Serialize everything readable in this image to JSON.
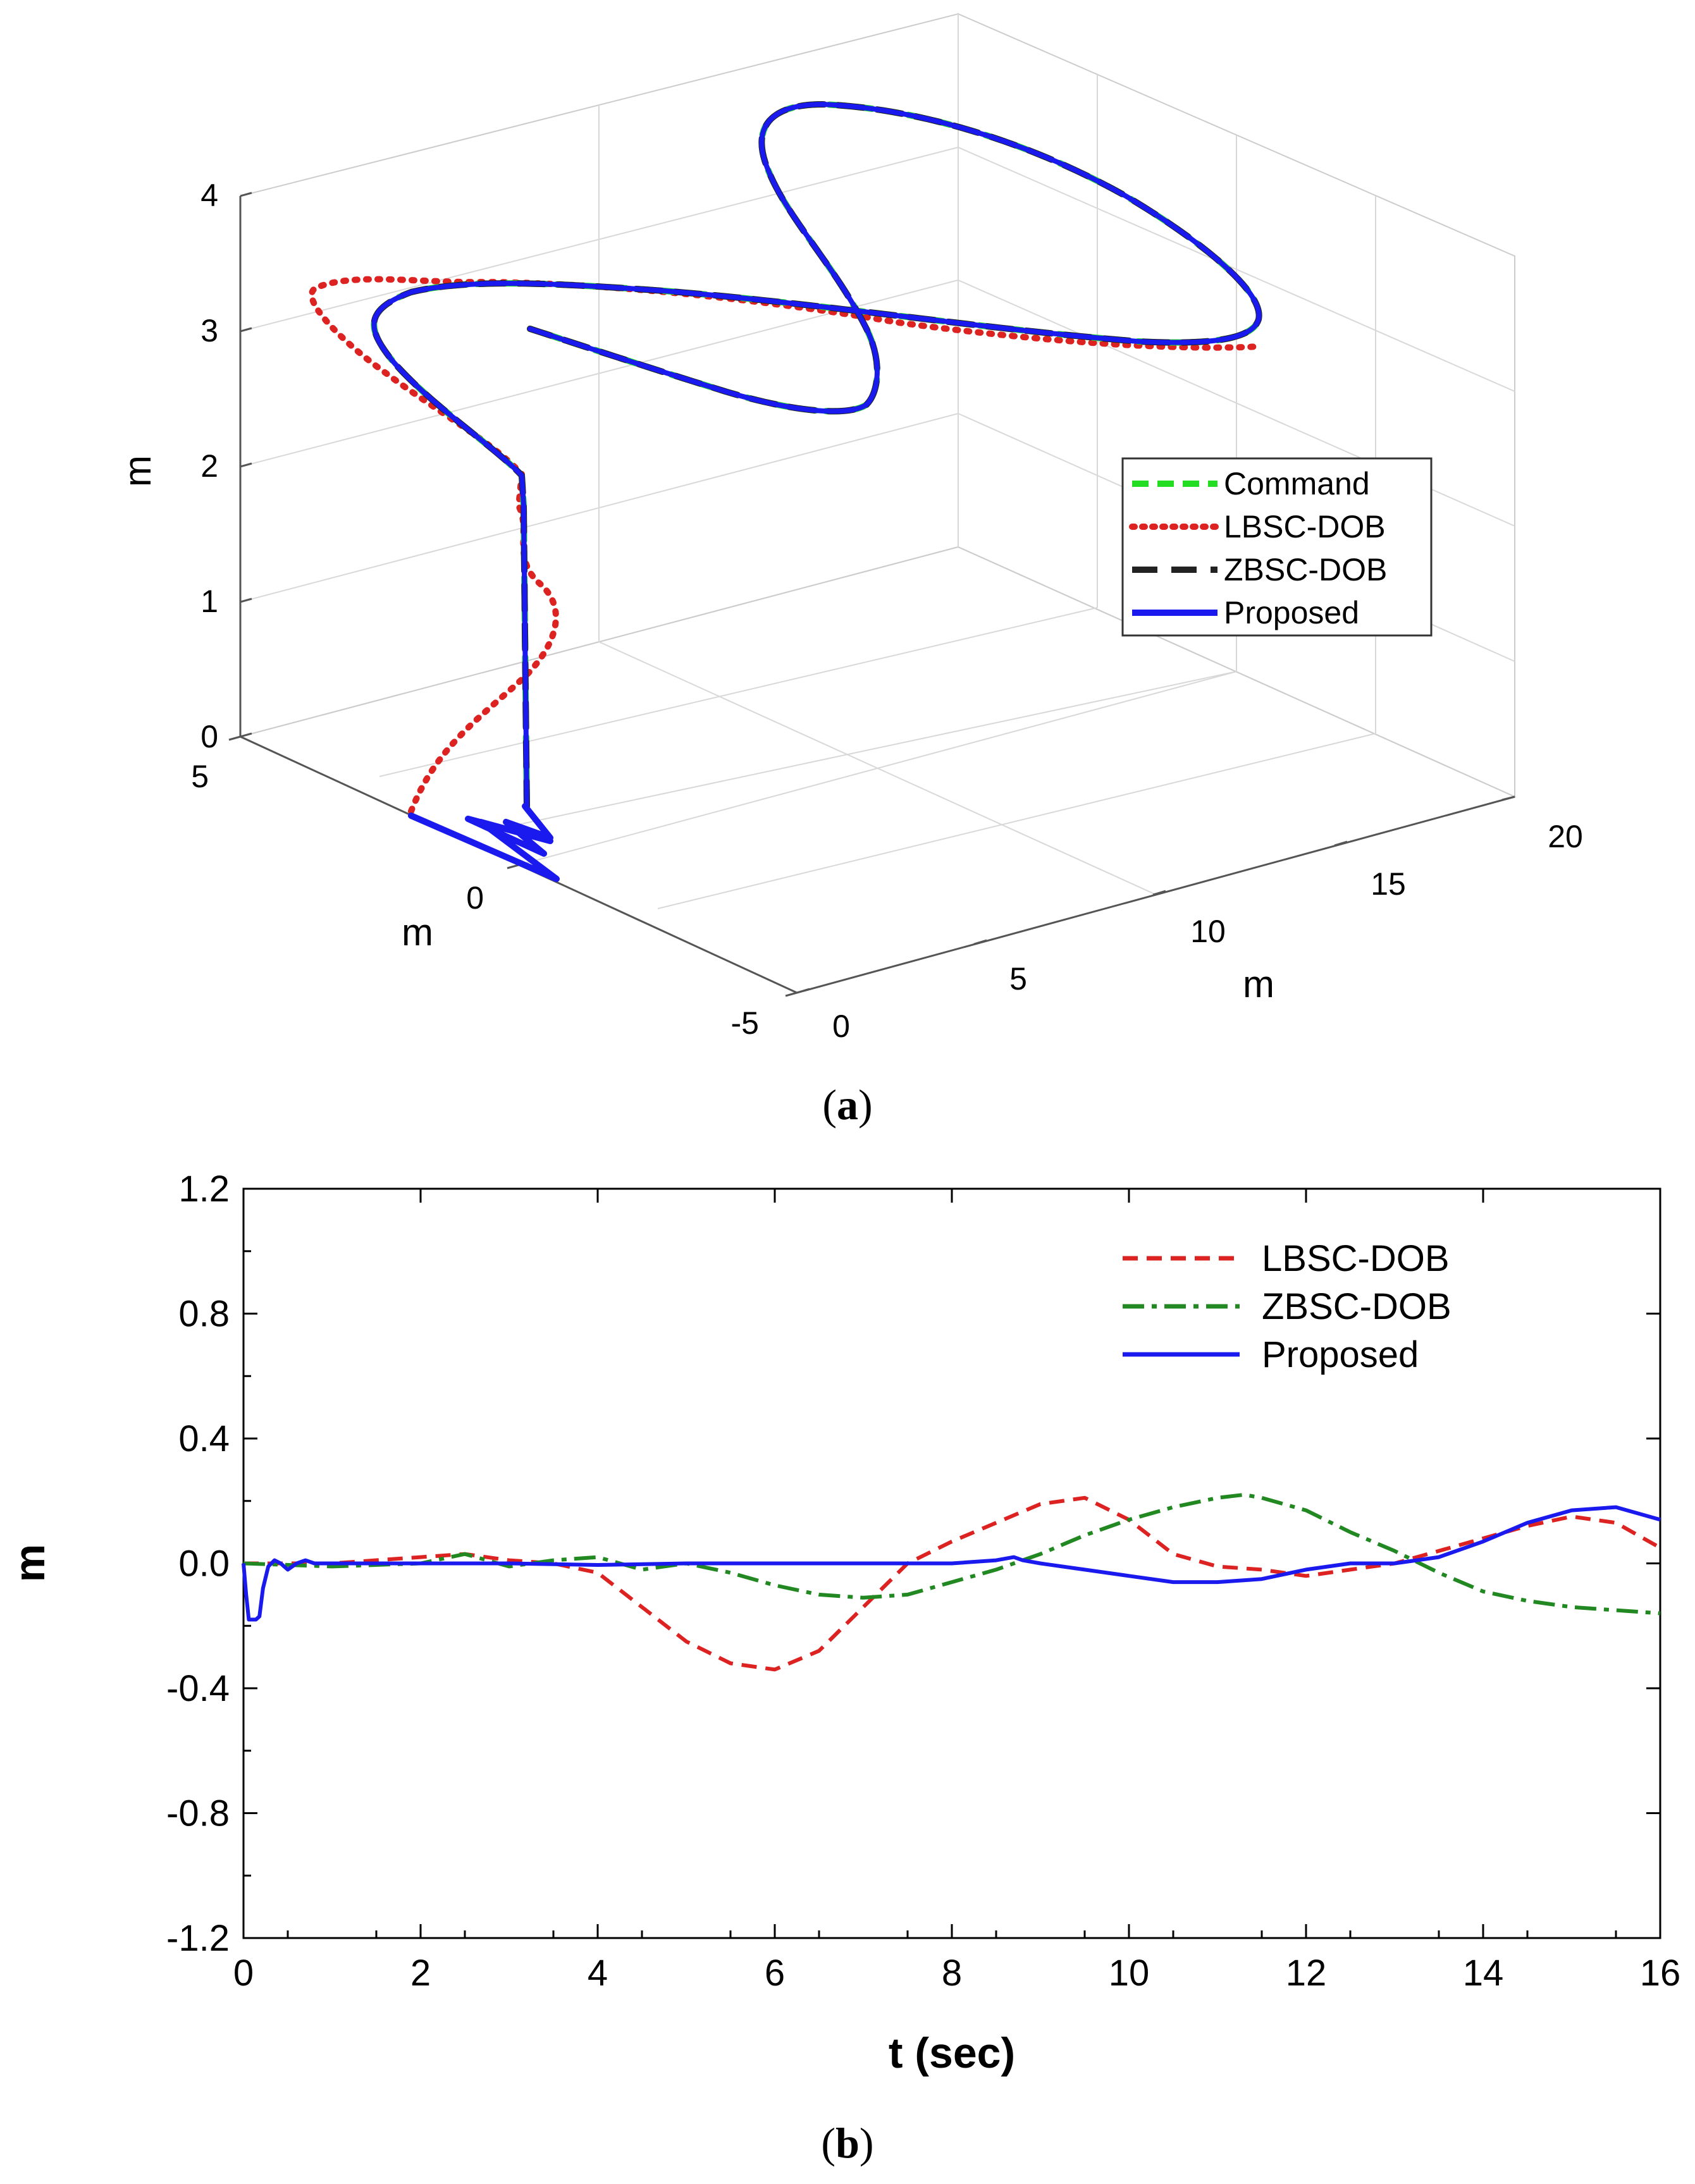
{
  "chart_data": [
    {
      "type": "line3d",
      "panel": "a",
      "caption_open": "(",
      "caption_letter": "a",
      "caption_close": ")",
      "xlabel": "m",
      "ylabel": "m",
      "zlabel": "m",
      "xlim": [
        0,
        20
      ],
      "ylim": [
        -5,
        5
      ],
      "zlim": [
        0,
        4
      ],
      "xticks": [
        "0",
        "5",
        "10",
        "15",
        "20"
      ],
      "yticks": [
        "-5",
        "0",
        "5"
      ],
      "zticks": [
        "0",
        "1",
        "2",
        "3",
        "4"
      ],
      "grid": true,
      "legend_position": "center-right",
      "series": [
        {
          "name": "Command",
          "color": "#22dd22",
          "style": "dashed"
        },
        {
          "name": "LBSC-DOB",
          "color": "#dd2222",
          "style": "dotted"
        },
        {
          "name": "ZBSC-DOB",
          "color": "#222222",
          "style": "dashed"
        },
        {
          "name": "Proposed",
          "color": "#1a1aee",
          "style": "solid"
        }
      ]
    },
    {
      "type": "line",
      "panel": "b",
      "caption_open": "(",
      "caption_letter": "b",
      "caption_close": ")",
      "xlabel": "t (sec)",
      "ylabel": "m",
      "xlim": [
        0,
        16
      ],
      "ylim": [
        -1.2,
        1.2
      ],
      "xticks": [
        "0",
        "2",
        "4",
        "6",
        "8",
        "10",
        "12",
        "14",
        "16"
      ],
      "yticks": [
        "-1.2",
        "-0.8",
        "-0.4",
        "0.0",
        "0.4",
        "0.8",
        "1.2"
      ],
      "grid": false,
      "legend_position": "top-right",
      "series": [
        {
          "name": "LBSC-DOB",
          "color": "#dd2222",
          "style": "dashed",
          "x": [
            0,
            1,
            2,
            2.5,
            3,
            3.5,
            4,
            4.5,
            5,
            5.5,
            6,
            6.5,
            7,
            7.5,
            8,
            8.5,
            9,
            9.5,
            10,
            10.5,
            11,
            11.5,
            12,
            12.5,
            13,
            13.5,
            14,
            14.5,
            15,
            15.5,
            16
          ],
          "y": [
            0,
            0.0,
            0.02,
            0.03,
            0.01,
            0.0,
            -0.03,
            -0.14,
            -0.25,
            -0.32,
            -0.34,
            -0.28,
            -0.14,
            0.0,
            0.07,
            0.13,
            0.19,
            0.21,
            0.14,
            0.03,
            -0.01,
            -0.02,
            -0.04,
            -0.02,
            0.0,
            0.04,
            0.08,
            0.12,
            0.15,
            0.13,
            0.05
          ]
        },
        {
          "name": "ZBSC-DOB",
          "color": "#228822",
          "style": "dashdot",
          "x": [
            0,
            1,
            2,
            2.5,
            3,
            3.5,
            4,
            4.5,
            5,
            5.5,
            6,
            6.5,
            7,
            7.5,
            8,
            8.5,
            9,
            9.5,
            10,
            10.5,
            11,
            11.3,
            11.5,
            12,
            12.5,
            13,
            13.5,
            14,
            14.5,
            15,
            15.5,
            16
          ],
          "y": [
            0,
            -0.01,
            0.0,
            0.03,
            -0.01,
            0.01,
            0.02,
            -0.02,
            0.0,
            -0.03,
            -0.07,
            -0.1,
            -0.11,
            -0.1,
            -0.06,
            -0.02,
            0.03,
            0.09,
            0.14,
            0.18,
            0.21,
            0.22,
            0.21,
            0.17,
            0.1,
            0.04,
            -0.03,
            -0.09,
            -0.12,
            -0.14,
            -0.15,
            -0.16
          ]
        },
        {
          "name": "Proposed",
          "color": "#1a1aee",
          "style": "solid",
          "x": [
            0,
            0.03,
            0.06,
            0.1,
            0.14,
            0.18,
            0.22,
            0.28,
            0.35,
            0.42,
            0.5,
            0.6,
            0.7,
            0.8,
            0.9,
            1.0,
            1.5,
            2,
            3,
            4,
            5,
            6,
            7,
            8,
            8.5,
            8.7,
            8.8,
            9,
            9.5,
            10,
            10.5,
            11,
            11.5,
            12,
            12.5,
            13,
            13.5,
            14,
            14.5,
            15,
            15.5,
            16
          ],
          "y": [
            0,
            -0.1,
            -0.18,
            -0.18,
            -0.18,
            -0.17,
            -0.08,
            -0.01,
            0.01,
            0.0,
            -0.02,
            0.0,
            0.01,
            0.0,
            0.0,
            0.0,
            0.0,
            0.0,
            0.0,
            -0.005,
            0.0,
            0.0,
            0.0,
            0.0,
            0.01,
            0.02,
            0.01,
            0.0,
            -0.02,
            -0.04,
            -0.06,
            -0.06,
            -0.05,
            -0.02,
            0.0,
            0.0,
            0.02,
            0.07,
            0.13,
            0.17,
            0.18,
            0.14
          ]
        }
      ]
    }
  ]
}
